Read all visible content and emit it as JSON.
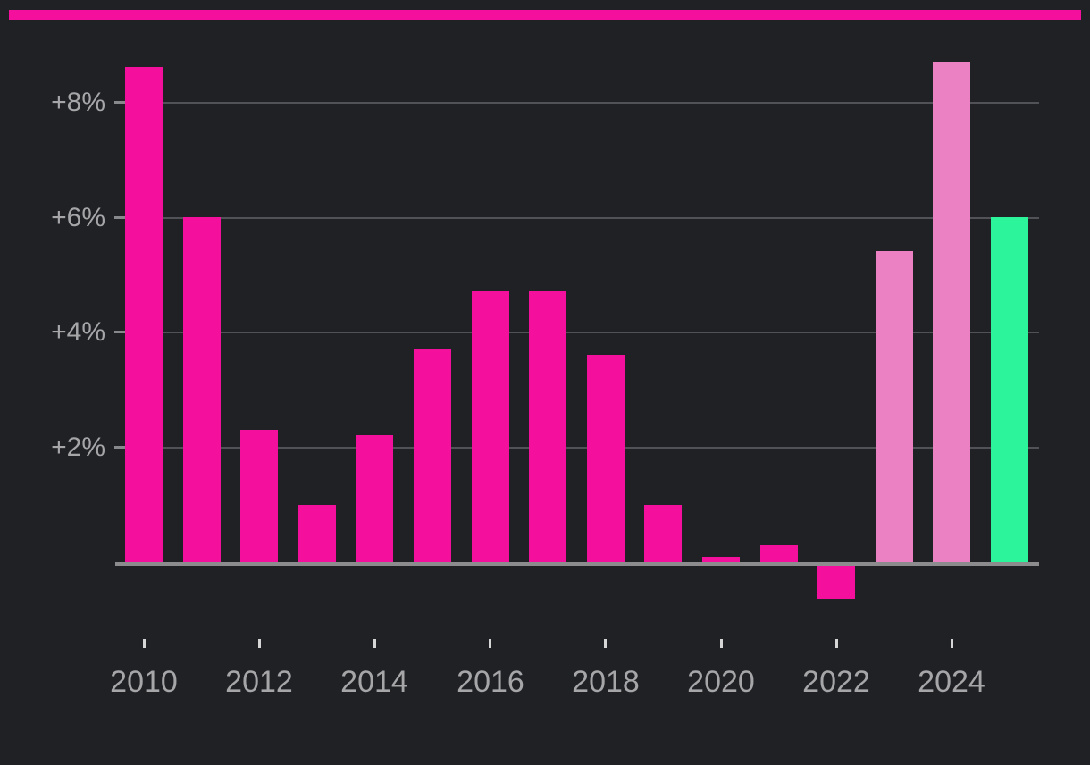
{
  "chart_data": {
    "type": "bar",
    "x": [
      2010,
      2011,
      2012,
      2013,
      2014,
      2015,
      2016,
      2017,
      2018,
      2019,
      2020,
      2021,
      2022,
      2023,
      2024,
      2025
    ],
    "values": [
      8.6,
      6.0,
      2.3,
      1.0,
      2.2,
      3.7,
      4.7,
      4.7,
      3.6,
      1.0,
      0.1,
      0.3,
      -0.6,
      5.4,
      8.7,
      6.0
    ],
    "bar_colors": [
      "pink",
      "pink",
      "pink",
      "pink",
      "pink",
      "pink",
      "pink",
      "pink",
      "pink",
      "pink",
      "pink",
      "pink",
      "pink",
      "light_pink",
      "light_pink",
      "green"
    ],
    "title": "",
    "xlabel": "",
    "ylabel": "",
    "y_tick_labels": [
      {
        "label": "+2%",
        "value": 2
      },
      {
        "label": "+4%",
        "value": 4
      },
      {
        "label": "+6%",
        "value": 6
      },
      {
        "label": "+8%",
        "value": 8
      }
    ],
    "x_tick_labels": [
      {
        "label": "2010",
        "year": 2010
      },
      {
        "label": "2012",
        "year": 2012
      },
      {
        "label": "2014",
        "year": 2014
      },
      {
        "label": "2016",
        "year": 2016
      },
      {
        "label": "2018",
        "year": 2018
      },
      {
        "label": "2020",
        "year": 2020
      },
      {
        "label": "2022",
        "year": 2022
      },
      {
        "label": "2024",
        "year": 2024
      }
    ],
    "ylim": [
      -1.0,
      9.3
    ],
    "grid": "horizontal",
    "legend": "none"
  },
  "colors": {
    "background": "#1f2124",
    "pink": "#f4109c",
    "light_pink": "#eb80c3",
    "green": "#2cf49b",
    "accent_stripe": "#f4109c",
    "gridline": "#515257",
    "y_tick": "#87888c",
    "axis_line": "#8c8c8e",
    "x_tick": "#d6d6d6",
    "label_text": "#a6a6a9"
  }
}
